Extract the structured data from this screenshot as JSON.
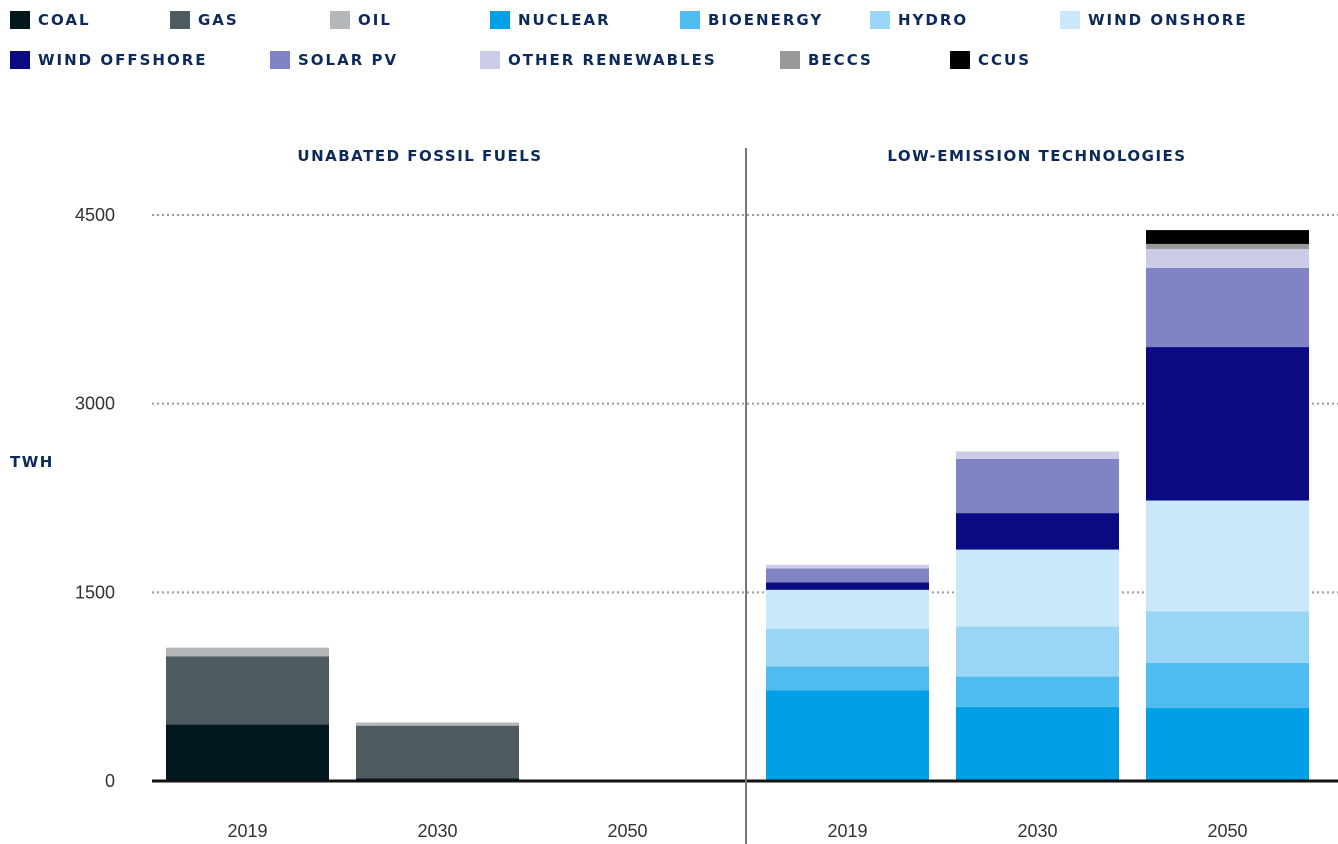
{
  "chart_data": {
    "type": "bar",
    "stacked": true,
    "ylabel": "TWH",
    "yticks": [
      0,
      1500,
      3000,
      4500
    ],
    "ylim": [
      0,
      4500
    ],
    "grid": "dotted horizontal",
    "legend_position": "top",
    "legend": [
      {
        "name": "COAL",
        "color": "#03181e"
      },
      {
        "name": "GAS",
        "color": "#4e5b60"
      },
      {
        "name": "OIL",
        "color": "#b3b7b9"
      },
      {
        "name": "NUCLEAR",
        "color": "#00a0e6"
      },
      {
        "name": "BIOENERGY",
        "color": "#4fbcf0"
      },
      {
        "name": "HYDRO",
        "color": "#99d6f5"
      },
      {
        "name": "WIND ONSHORE",
        "color": "#c9e8fa"
      },
      {
        "name": "WIND OFFSHORE",
        "color": "#0a0a82"
      },
      {
        "name": "SOLAR PV",
        "color": "#8084c4"
      },
      {
        "name": "OTHER RENEWABLES",
        "color": "#cbcde8"
      },
      {
        "name": "BECCS",
        "color": "#999999"
      },
      {
        "name": "CCUS",
        "color": "#000000"
      }
    ],
    "panels": [
      {
        "title": "UNABATED FOSSIL FUELS",
        "categories": [
          "2019",
          "2030",
          "2050"
        ],
        "series": [
          {
            "name": "COAL",
            "values": [
              450,
              20,
              0
            ]
          },
          {
            "name": "GAS",
            "values": [
              540,
              420,
              0
            ]
          },
          {
            "name": "OIL",
            "values": [
              70,
              25,
              0
            ]
          }
        ]
      },
      {
        "title": "LOW-EMISSION TECHNOLOGIES",
        "categories": [
          "2019",
          "2030",
          "2050"
        ],
        "series": [
          {
            "name": "NUCLEAR",
            "values": [
              720,
              590,
              580
            ]
          },
          {
            "name": "BIOENERGY",
            "values": [
              190,
              240,
              360
            ]
          },
          {
            "name": "HYDRO",
            "values": [
              300,
              400,
              410
            ]
          },
          {
            "name": "WIND ONSHORE",
            "values": [
              310,
              610,
              880
            ]
          },
          {
            "name": "WIND OFFSHORE",
            "values": [
              60,
              290,
              1220
            ]
          },
          {
            "name": "SOLAR PV",
            "values": [
              110,
              430,
              630
            ]
          },
          {
            "name": "OTHER RENEWABLES",
            "values": [
              30,
              60,
              150
            ]
          },
          {
            "name": "BECCS",
            "values": [
              0,
              0,
              40
            ]
          },
          {
            "name": "CCUS",
            "values": [
              0,
              0,
              110
            ]
          }
        ]
      }
    ]
  }
}
